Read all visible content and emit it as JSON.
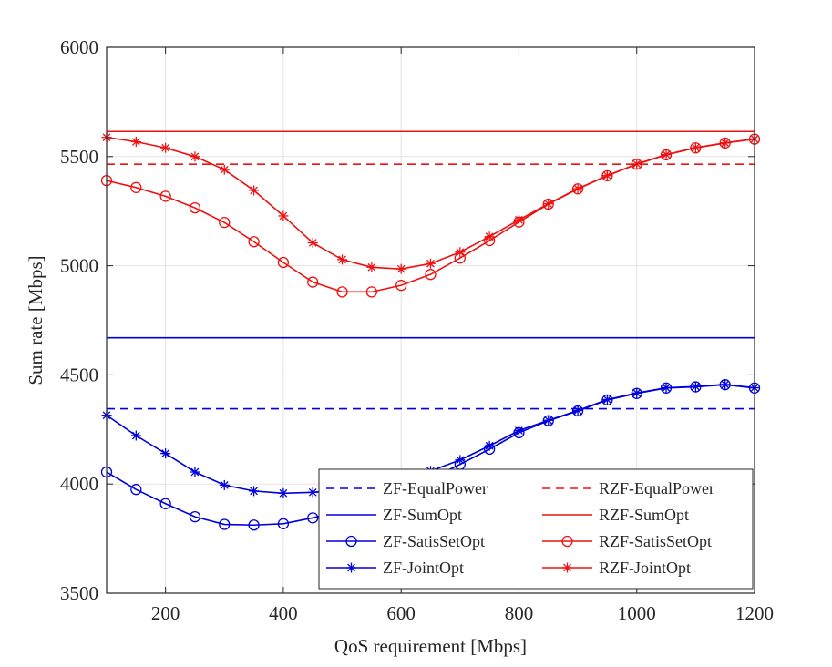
{
  "chart_data": {
    "type": "line",
    "title": "",
    "xlabel": "QoS requirement [Mbps]",
    "ylabel": "Sum rate [Mbps]",
    "xlim": [
      100,
      1200
    ],
    "ylim": [
      3500,
      6000
    ],
    "xticks": [
      200,
      400,
      600,
      800,
      1000,
      1200
    ],
    "yticks": [
      3500,
      4000,
      4500,
      5000,
      5500,
      6000
    ],
    "grid": true,
    "legend_position": "lower-right",
    "legend_columns": 2,
    "x": [
      100,
      150,
      200,
      250,
      300,
      350,
      400,
      450,
      500,
      550,
      600,
      650,
      700,
      750,
      800,
      850,
      900,
      950,
      1000,
      1050,
      1100,
      1150,
      1200
    ],
    "series": [
      {
        "name": "ZF-EqualPower",
        "color": "#0000dd",
        "line": "dashed",
        "marker": "none",
        "values": [
          4345,
          4345,
          4345,
          4345,
          4345,
          4345,
          4345,
          4345,
          4345,
          4345,
          4345,
          4345,
          4345,
          4345,
          4345,
          4345,
          4345,
          4345,
          4345,
          4345,
          4345,
          4345,
          4345
        ]
      },
      {
        "name": "RZF-EqualPower",
        "color": "#ee1111",
        "line": "dashed",
        "marker": "none",
        "values": [
          5465,
          5465,
          5465,
          5465,
          5465,
          5465,
          5465,
          5465,
          5465,
          5465,
          5465,
          5465,
          5465,
          5465,
          5465,
          5465,
          5465,
          5465,
          5465,
          5465,
          5465,
          5465,
          5465
        ]
      },
      {
        "name": "ZF-SumOpt",
        "color": "#0000dd",
        "line": "solid",
        "marker": "none",
        "values": [
          4670,
          4670,
          4670,
          4670,
          4670,
          4670,
          4670,
          4670,
          4670,
          4670,
          4670,
          4670,
          4670,
          4670,
          4670,
          4670,
          4670,
          4670,
          4670,
          4670,
          4670,
          4670,
          4670
        ]
      },
      {
        "name": "RZF-SumOpt",
        "color": "#ee1111",
        "line": "solid",
        "marker": "none",
        "values": [
          5615,
          5615,
          5615,
          5615,
          5615,
          5615,
          5615,
          5615,
          5615,
          5615,
          5615,
          5615,
          5615,
          5615,
          5615,
          5615,
          5615,
          5615,
          5615,
          5615,
          5615,
          5615,
          5615
        ]
      },
      {
        "name": "ZF-SatisSetOpt",
        "color": "#0000dd",
        "line": "solid",
        "marker": "circle",
        "values": [
          4055,
          3975,
          3910,
          3850,
          3815,
          3812,
          3818,
          3845,
          3880,
          3920,
          3965,
          4025,
          4090,
          4160,
          4235,
          4290,
          4335,
          4385,
          4415,
          4440,
          4445,
          4455,
          4440
        ]
      },
      {
        "name": "RZF-SatisSetOpt",
        "color": "#ee1111",
        "line": "solid",
        "marker": "circle",
        "values": [
          5390,
          5358,
          5318,
          5265,
          5198,
          5110,
          5015,
          4925,
          4880,
          4880,
          4910,
          4960,
          5035,
          5115,
          5200,
          5282,
          5352,
          5412,
          5465,
          5508,
          5540,
          5562,
          5580
        ]
      },
      {
        "name": "ZF-JointOpt",
        "color": "#0000dd",
        "line": "solid",
        "marker": "star",
        "values": [
          4315,
          4222,
          4140,
          4055,
          3995,
          3968,
          3958,
          3962,
          3975,
          3990,
          4015,
          4060,
          4110,
          4175,
          4245,
          4292,
          4337,
          4387,
          4417,
          4441,
          4447,
          4456,
          4441
        ]
      },
      {
        "name": "RZF-JointOpt",
        "color": "#ee1111",
        "line": "solid",
        "marker": "star",
        "values": [
          5588,
          5568,
          5540,
          5500,
          5440,
          5345,
          5228,
          5105,
          5028,
          4993,
          4985,
          5010,
          5062,
          5133,
          5210,
          5284,
          5353,
          5413,
          5466,
          5509,
          5541,
          5563,
          5581
        ]
      }
    ]
  }
}
